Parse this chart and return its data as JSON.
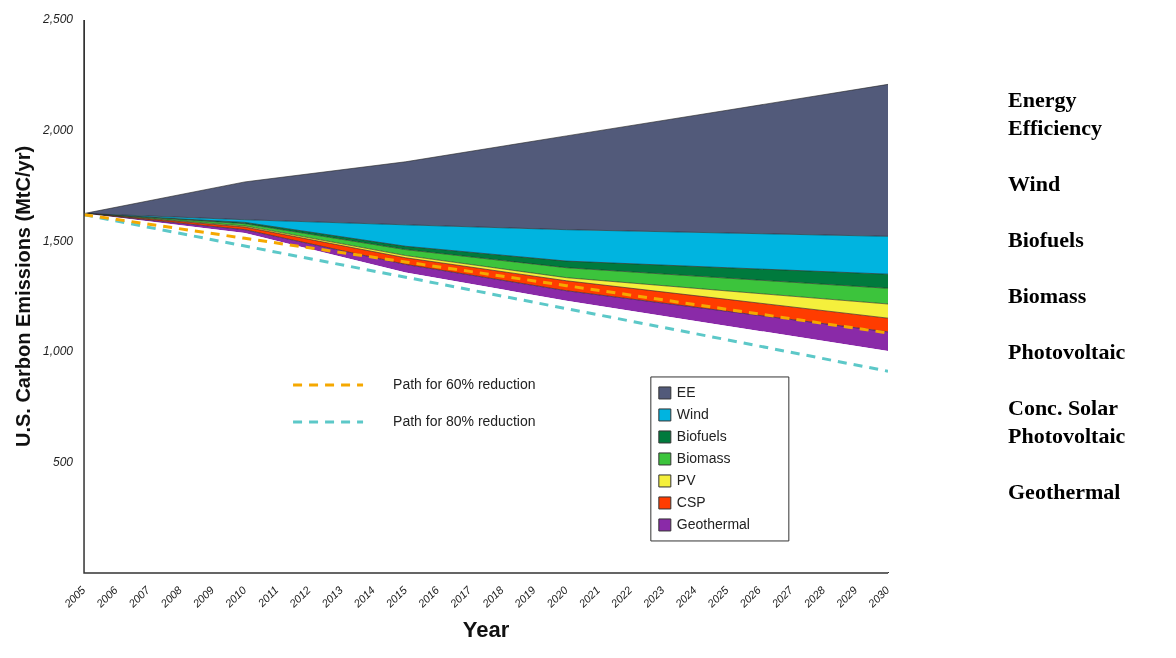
{
  "chart_data": {
    "type": "area",
    "stacked": true,
    "xlabel": "Year",
    "ylabel": "U.S. Carbon Emissions (MtC/yr)",
    "x": [
      2005,
      2010,
      2015,
      2020,
      2025,
      2030
    ],
    "xlim": [
      2005,
      2030
    ],
    "xticks": [
      2005,
      2006,
      2007,
      2008,
      2009,
      2010,
      2011,
      2012,
      2013,
      2014,
      2015,
      2016,
      2017,
      2018,
      2019,
      2020,
      2021,
      2022,
      2023,
      2024,
      2025,
      2026,
      2027,
      2028,
      2029,
      2030
    ],
    "ylim": [
      0,
      2500
    ],
    "yticks": [
      {
        "value": 0,
        "label": null
      },
      500,
      {
        "value": 1000,
        "label": "1,000"
      },
      {
        "value": 1500,
        "label": "1,500"
      },
      {
        "value": 2000,
        "label": "2,000"
      },
      {
        "value": 2500,
        "label": "2,500"
      }
    ],
    "grid": false,
    "legend": "bottom right",
    "series": [
      {
        "color": "#ffffff",
        "values": [
          1625,
          1537,
          1358,
          1231,
          1117,
          1003
        ]
      },
      {
        "name": "Geothermal",
        "color": "#8a2aa8",
        "values": [
          0,
          15,
          37,
          45,
          66,
          87
        ]
      },
      {
        "name": "CSP",
        "color": "#ff3c00",
        "values": [
          0,
          12,
          30,
          45,
          54,
          62
        ]
      },
      {
        "name": "PV",
        "color": "#f5f03c",
        "values": [
          0,
          5,
          10,
          14,
          38,
          64
        ]
      },
      {
        "name": "Biomass",
        "color": "#3cc43c",
        "values": [
          0,
          10,
          27,
          45,
          58,
          71
        ]
      },
      {
        "name": "Biofuels",
        "color": "#007a3d",
        "values": [
          0,
          6,
          15,
          30,
          47,
          64
        ]
      },
      {
        "name": "Wind",
        "color": "#00b4e0",
        "values": [
          0,
          12,
          97,
          142,
          157,
          171
        ]
      },
      {
        "name": "EE",
        "color": "#525a7a",
        "values": [
          0,
          171,
          285,
          424,
          555,
          687
        ]
      },
      {
        "name": "Path for 60% reduction",
        "type": "line",
        "line_style": "dashed",
        "color": "#f5a800",
        "values": [
          1620,
          1513,
          1406,
          1299,
          1192,
          1085
        ]
      },
      {
        "name": "Path for 80% reduction",
        "type": "line",
        "line_style": "dashed",
        "color": "#5cc8c8",
        "values": [
          1620,
          1478,
          1337,
          1195,
          1054,
          912
        ]
      }
    ],
    "annotations": [
      "Energy Efficiency",
      "Wind",
      "Biofuels",
      "Biomass",
      "Photovoltaic",
      "Conc. Solar Photovoltaic",
      "Geothermal"
    ]
  }
}
